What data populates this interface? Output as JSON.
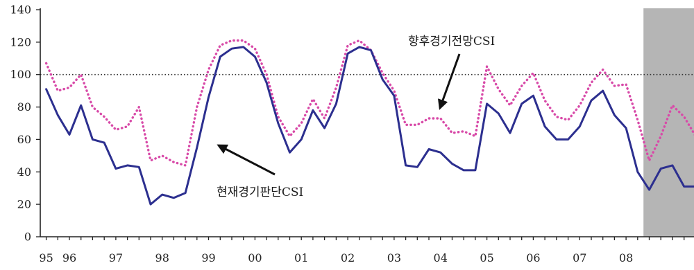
{
  "chart_data": {
    "type": "line",
    "x": [
      1995.5,
      1995.75,
      1996,
      1996.25,
      1996.5,
      1996.75,
      1997,
      1997.25,
      1997.5,
      1997.75,
      1998,
      1998.25,
      1998.5,
      1998.75,
      1999,
      1999.25,
      1999.5,
      1999.75,
      2000,
      2000.25,
      2000.5,
      2000.75,
      2001,
      2001.25,
      2001.5,
      2001.75,
      2002,
      2002.25,
      2002.5,
      2002.75,
      2003,
      2003.25,
      2003.5,
      2003.75,
      2004,
      2004.25,
      2004.5,
      2004.75,
      2005,
      2005.25,
      2005.5,
      2005.75,
      2006,
      2006.25,
      2006.5,
      2006.75,
      2007,
      2007.25,
      2007.5,
      2007.75,
      2008,
      2008.25,
      2008.5,
      2008.75,
      2009,
      2009.25,
      2009.5
    ],
    "x_ticks": [
      {
        "label": "95",
        "at": 1995.5
      },
      {
        "label": "96",
        "at": 1996
      },
      {
        "label": "97",
        "at": 1997
      },
      {
        "label": "98",
        "at": 1998
      },
      {
        "label": "99",
        "at": 1999
      },
      {
        "label": "00",
        "at": 2000
      },
      {
        "label": "01",
        "at": 2001
      },
      {
        "label": "02",
        "at": 2002
      },
      {
        "label": "03",
        "at": 2003
      },
      {
        "label": "04",
        "at": 2004
      },
      {
        "label": "05",
        "at": 2005
      },
      {
        "label": "06",
        "at": 2006
      },
      {
        "label": "07",
        "at": 2007
      },
      {
        "label": "08",
        "at": 2008
      }
    ],
    "ylim": [
      0,
      140
    ],
    "yticks": [
      0,
      20,
      40,
      60,
      80,
      100,
      120,
      140
    ],
    "series": [
      {
        "name": "현재경기판단CSI",
        "line_style": "solid",
        "color": "#2c2f8f",
        "values": [
          91,
          75,
          63,
          81,
          60,
          58,
          42,
          44,
          43,
          20,
          26,
          24,
          27,
          55,
          86,
          111,
          116,
          117,
          111,
          95,
          70,
          52,
          60,
          78,
          67,
          82,
          113,
          117,
          115,
          97,
          87,
          44,
          43,
          54,
          52,
          45,
          41,
          41,
          82,
          76,
          64,
          82,
          87,
          68,
          60,
          60,
          68,
          84,
          90,
          75,
          67,
          40,
          29,
          42,
          44,
          31,
          31
        ]
      },
      {
        "name": "향후경기전망CSI",
        "line_style": "dotted",
        "color": "#d84aa8",
        "values": [
          107,
          90,
          92,
          100,
          80,
          74,
          66,
          68,
          80,
          47,
          50,
          46,
          44,
          80,
          103,
          118,
          121,
          121,
          116,
          100,
          74,
          62,
          70,
          85,
          73,
          92,
          118,
          121,
          115,
          101,
          90,
          69,
          69,
          73,
          73,
          64,
          65,
          62,
          105,
          91,
          81,
          93,
          101,
          84,
          74,
          72,
          81,
          95,
          103,
          93,
          94,
          72,
          47,
          62,
          81,
          74,
          62
        ]
      }
    ],
    "reference_line": {
      "y": 100,
      "line_style": "dotted",
      "color": "#333333"
    },
    "shaded_region": {
      "from": 2008.5,
      "color": "#b5b5b5"
    },
    "grid": false,
    "legend": "none"
  }
}
